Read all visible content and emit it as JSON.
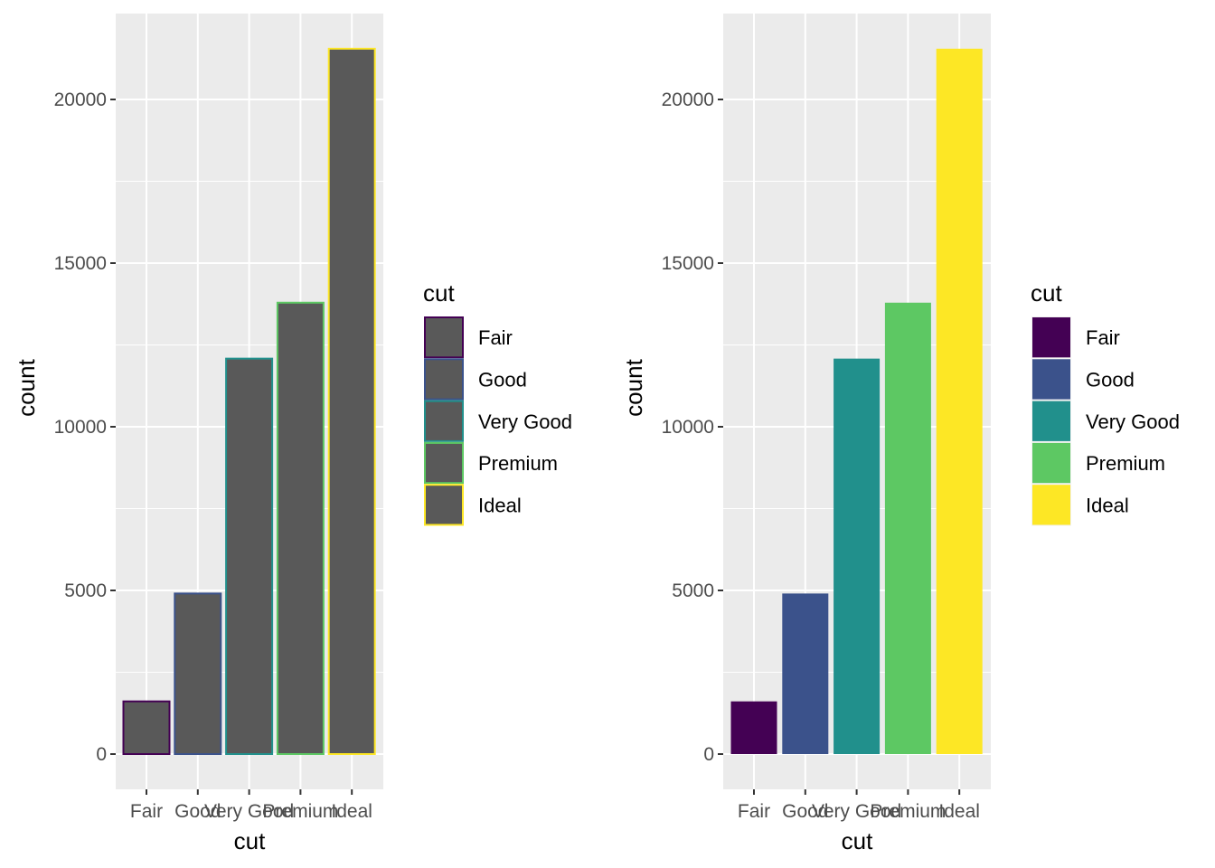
{
  "chart_data": [
    {
      "type": "bar",
      "mapping": "colour",
      "title": "",
      "xlabel": "cut",
      "ylabel": "count",
      "categories": [
        "Fair",
        "Good",
        "Very Good",
        "Premium",
        "Ideal"
      ],
      "values": [
        1610,
        4906,
        12082,
        13791,
        21551
      ],
      "ylim": [
        0,
        22630
      ],
      "yticks": [
        0,
        5000,
        10000,
        15000,
        20000
      ],
      "ytick_labels": [
        "0",
        "5000",
        "10000",
        "15000",
        "20000"
      ],
      "grid": true,
      "bar_fill": "#595959",
      "outline_colors": [
        "#440154",
        "#3B528B",
        "#21908C",
        "#5DC863",
        "#FDE725"
      ],
      "legend": {
        "title": "cut",
        "position": "right",
        "labels": [
          "Fair",
          "Good",
          "Very Good",
          "Premium",
          "Ideal"
        ]
      }
    },
    {
      "type": "bar",
      "mapping": "fill",
      "title": "",
      "xlabel": "cut",
      "ylabel": "count",
      "categories": [
        "Fair",
        "Good",
        "Very Good",
        "Premium",
        "Ideal"
      ],
      "values": [
        1610,
        4906,
        12082,
        13791,
        21551
      ],
      "ylim": [
        0,
        22630
      ],
      "yticks": [
        0,
        5000,
        10000,
        15000,
        20000
      ],
      "ytick_labels": [
        "0",
        "5000",
        "10000",
        "15000",
        "20000"
      ],
      "grid": true,
      "fill_colors": [
        "#440154",
        "#3B528B",
        "#21908C",
        "#5DC863",
        "#FDE725"
      ],
      "legend": {
        "title": "cut",
        "position": "right",
        "labels": [
          "Fair",
          "Good",
          "Very Good",
          "Premium",
          "Ideal"
        ]
      }
    }
  ]
}
